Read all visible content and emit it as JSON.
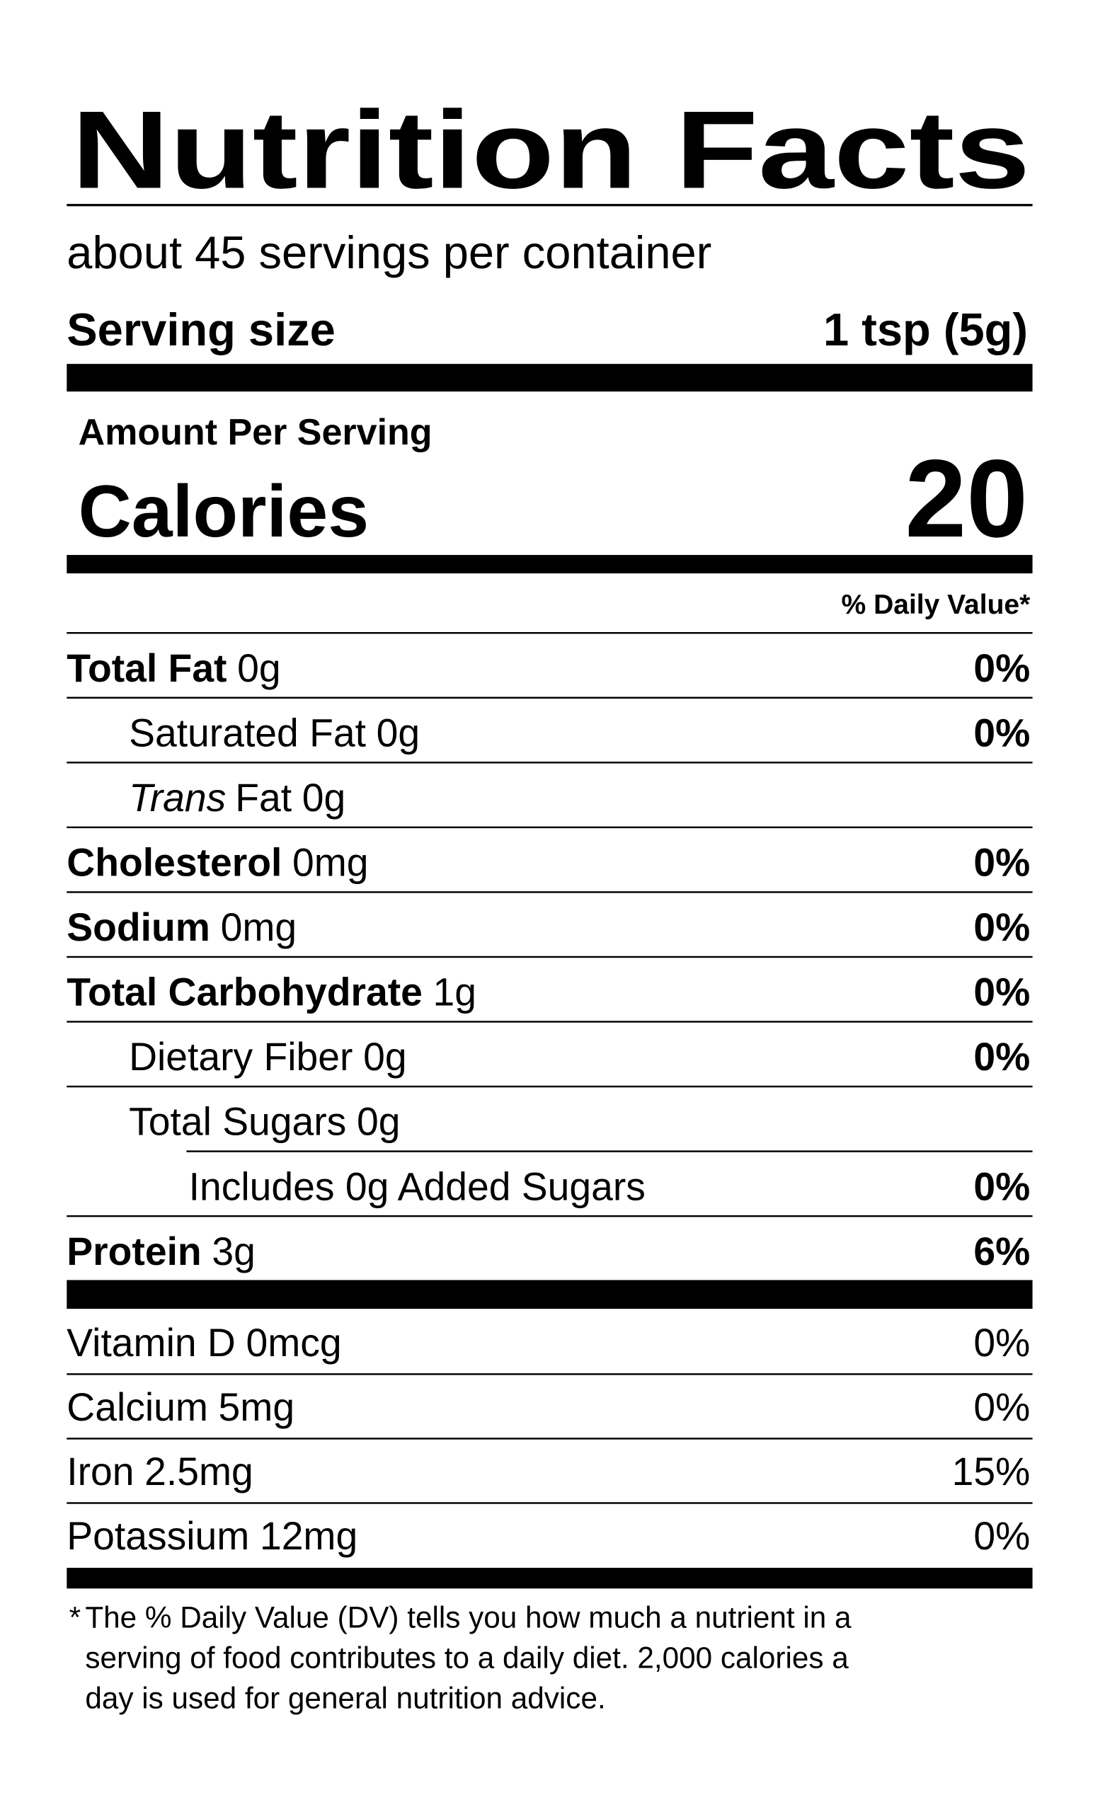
{
  "title": "Nutrition Facts",
  "servings": "about 45 servings per container",
  "serving_size": {
    "label": "Serving size",
    "value": "1 tsp (5g)"
  },
  "amount_per_serving": "Amount Per Serving",
  "calories": {
    "label": "Calories",
    "value": "20"
  },
  "daily_value_header": "% Daily Value*",
  "nutrients": [
    {
      "name": "Total Fat",
      "amount": "0g",
      "dv": "0%",
      "bold": true,
      "level": 0
    },
    {
      "name": "Saturated Fat",
      "amount": "0g",
      "dv": "0%",
      "bold": false,
      "level": 1
    },
    {
      "name_italic": "Trans",
      "name": "Fat",
      "amount": "0g",
      "bold": false,
      "level": 1
    },
    {
      "name": "Cholesterol",
      "amount": "0mg",
      "dv": "0%",
      "bold": true,
      "level": 0
    },
    {
      "name": "Sodium",
      "amount": "0mg",
      "dv": "0%",
      "bold": true,
      "level": 0
    },
    {
      "name": "Total Carbohydrate",
      "amount": "1g",
      "dv": "0%",
      "bold": true,
      "level": 0
    },
    {
      "name": "Dietary Fiber",
      "amount": "0g",
      "dv": "0%",
      "bold": false,
      "level": 1
    },
    {
      "name": "Total Sugars",
      "amount": "0g",
      "bold": false,
      "level": 1
    },
    {
      "name": "Includes 0g Added Sugars",
      "dv": "0%",
      "bold": false,
      "level": 2
    },
    {
      "name": "Protein",
      "amount": "3g",
      "dv": "6%",
      "bold": true,
      "level": 0
    }
  ],
  "vitamins_minerals": [
    {
      "name": "Vitamin D",
      "amount": "0mcg",
      "dv": "0%"
    },
    {
      "name": "Calcium",
      "amount": "5mg",
      "dv": "0%"
    },
    {
      "name": "Iron",
      "amount": "2.5mg",
      "dv": "15%"
    },
    {
      "name": "Potassium",
      "amount": "12mg",
      "dv": "0%"
    }
  ],
  "footnote": {
    "marker": "*",
    "lines": [
      "The % Daily Value (DV) tells you how much a nutrient in a",
      "serving of food contributes to a daily diet. 2,000 calories a",
      "day is used for general nutrition advice."
    ]
  }
}
